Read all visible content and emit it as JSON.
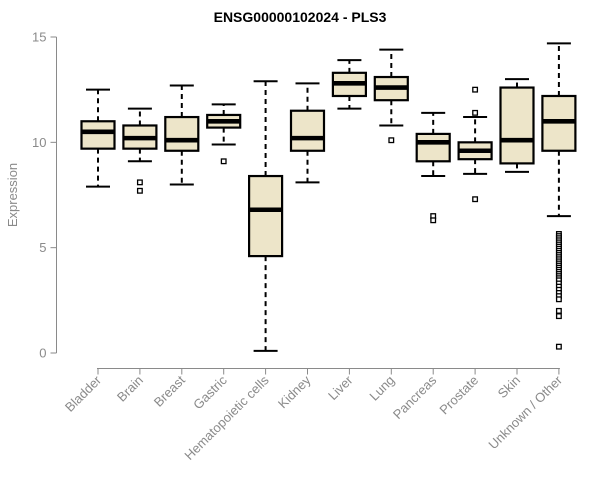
{
  "title": "ENSG00000102024 - PLS3",
  "colors": {
    "box_fill": "#ede5c9",
    "box_stroke": "#000000",
    "median": "#000000",
    "whisker": "#000000",
    "outlier_stroke": "#000000",
    "outlier_fill": "#ffffff",
    "axis": "#8a8a8a",
    "tick_text": "#8a8a8a",
    "title_text": "#000000",
    "background": "#ffffff"
  },
  "chart_data": {
    "type": "boxplot",
    "title": "ENSG00000102024 - PLS3",
    "xlabel": "",
    "ylabel": "Expression",
    "ylim": [
      0,
      15
    ],
    "yticks": [
      0,
      5,
      10,
      15
    ],
    "grid": false,
    "legend": "none",
    "categories": [
      "Bladder",
      "Brain",
      "Breast",
      "Gastric",
      "Hematopoietic cells",
      "Kidney",
      "Liver",
      "Lung",
      "Pancreas",
      "Prostate",
      "Skin",
      "Unknown / Other"
    ],
    "series": [
      {
        "name": "Bladder",
        "whisker_low": 7.9,
        "q1": 9.7,
        "median": 10.5,
        "q3": 11.0,
        "whisker_high": 12.5,
        "outliers": []
      },
      {
        "name": "Brain",
        "whisker_low": 9.1,
        "q1": 9.7,
        "median": 10.2,
        "q3": 10.8,
        "whisker_high": 11.6,
        "outliers": [
          8.1,
          7.7
        ]
      },
      {
        "name": "Breast",
        "whisker_low": 8.0,
        "q1": 9.6,
        "median": 10.1,
        "q3": 11.2,
        "whisker_high": 12.7,
        "outliers": []
      },
      {
        "name": "Gastric",
        "whisker_low": 9.9,
        "q1": 10.7,
        "median": 11.0,
        "q3": 11.3,
        "whisker_high": 11.8,
        "outliers": [
          9.1
        ]
      },
      {
        "name": "Hematopoietic cells",
        "whisker_low": 0.1,
        "q1": 4.6,
        "median": 6.8,
        "q3": 8.4,
        "whisker_high": 12.9,
        "outliers": []
      },
      {
        "name": "Kidney",
        "whisker_low": 8.1,
        "q1": 9.6,
        "median": 10.2,
        "q3": 11.5,
        "whisker_high": 12.8,
        "outliers": []
      },
      {
        "name": "Liver",
        "whisker_low": 11.6,
        "q1": 12.2,
        "median": 12.8,
        "q3": 13.3,
        "whisker_high": 13.9,
        "outliers": []
      },
      {
        "name": "Lung",
        "whisker_low": 10.8,
        "q1": 12.0,
        "median": 12.6,
        "q3": 13.1,
        "whisker_high": 14.4,
        "outliers": [
          10.1
        ]
      },
      {
        "name": "Pancreas",
        "whisker_low": 8.4,
        "q1": 9.1,
        "median": 10.0,
        "q3": 10.4,
        "whisker_high": 11.4,
        "outliers": [
          6.5,
          6.3
        ]
      },
      {
        "name": "Prostate",
        "whisker_low": 8.5,
        "q1": 9.2,
        "median": 9.6,
        "q3": 10.0,
        "whisker_high": 11.2,
        "outliers": [
          12.5,
          11.4,
          7.3
        ]
      },
      {
        "name": "Skin",
        "whisker_low": 8.6,
        "q1": 9.0,
        "median": 10.1,
        "q3": 12.6,
        "whisker_high": 13.0,
        "outliers": []
      },
      {
        "name": "Unknown / Other",
        "whisker_low": 6.5,
        "q1": 9.6,
        "median": 11.0,
        "q3": 12.2,
        "whisker_high": 14.7,
        "outliers": [
          5.65,
          5.55,
          5.45,
          5.35,
          5.25,
          5.15,
          5.05,
          4.95,
          4.85,
          4.75,
          4.65,
          4.55,
          4.45,
          4.35,
          4.25,
          4.15,
          4.05,
          3.95,
          3.85,
          3.75,
          3.65,
          3.55,
          3.45,
          3.3,
          3.15,
          3.0,
          2.85,
          2.7,
          2.55,
          2.0,
          1.75,
          0.3
        ]
      }
    ]
  }
}
